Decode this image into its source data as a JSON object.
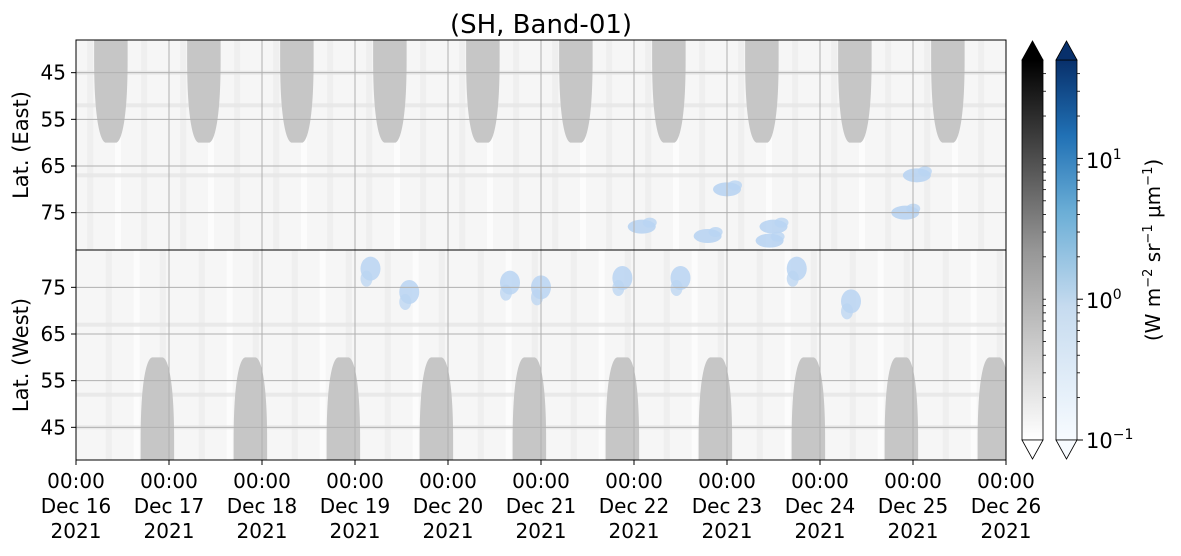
{
  "chart_data": {
    "type": "heatmap",
    "title": "(SH, Band-01)",
    "panels": [
      {
        "name": "east",
        "ylabel": "Lat. (East)",
        "yticks": [
          "45",
          "55",
          "65",
          "75"
        ],
        "lat_range": [
          38,
          83
        ],
        "orientation": "lat increases downward"
      },
      {
        "name": "west",
        "ylabel": "Lat. (West)",
        "yticks": [
          "75",
          "65",
          "55",
          "45"
        ],
        "lat_range": [
          83,
          38
        ],
        "orientation": "lat decreases downward"
      }
    ],
    "x_ticks": [
      {
        "time": "00:00",
        "date": "Dec 16",
        "year": "2021"
      },
      {
        "time": "00:00",
        "date": "Dec 17",
        "year": "2021"
      },
      {
        "time": "00:00",
        "date": "Dec 18",
        "year": "2021"
      },
      {
        "time": "00:00",
        "date": "Dec 19",
        "year": "2021"
      },
      {
        "time": "00:00",
        "date": "Dec 20",
        "year": "2021"
      },
      {
        "time": "00:00",
        "date": "Dec 21",
        "year": "2021"
      },
      {
        "time": "00:00",
        "date": "Dec 22",
        "year": "2021"
      },
      {
        "time": "00:00",
        "date": "Dec 23",
        "year": "2021"
      },
      {
        "time": "00:00",
        "date": "Dec 24",
        "year": "2021"
      },
      {
        "time": "00:00",
        "date": "Dec 25",
        "year": "2021"
      },
      {
        "time": "00:00",
        "date": "Dec 26",
        "year": "2021"
      }
    ],
    "x_range": [
      "2021-12-16T00:00",
      "2021-12-26T00:00"
    ],
    "grid": true,
    "dark_regions": {
      "east_center_times": [
        "2021-12-16T09:00",
        "2021-12-17T09:00",
        "2021-12-18T09:00",
        "2021-12-19T09:00",
        "2021-12-20T09:00",
        "2021-12-21T09:00",
        "2021-12-22T09:00",
        "2021-12-23T09:00",
        "2021-12-24T09:00",
        "2021-12-25T09:00"
      ],
      "west_center_times": [
        "2021-12-16T21:00",
        "2021-12-17T21:00",
        "2021-12-18T21:00",
        "2021-12-19T21:00",
        "2021-12-20T21:00",
        "2021-12-21T21:00",
        "2021-12-22T21:00",
        "2021-12-23T21:00",
        "2021-12-24T21:00",
        "2021-12-25T21:00"
      ],
      "edge_lat": 60
    },
    "blue_patches": {
      "east": [
        {
          "time": "2021-12-22T19:00",
          "lat": 80
        },
        {
          "time": "2021-12-22T02:00",
          "lat": 78
        },
        {
          "time": "2021-12-23T11:00",
          "lat": 81
        },
        {
          "time": "2021-12-23T12:00",
          "lat": 78
        },
        {
          "time": "2021-12-25T01:00",
          "lat": 67
        },
        {
          "time": "2021-12-24T22:00",
          "lat": 75
        },
        {
          "time": "2021-12-23T00:00",
          "lat": 70
        }
      ],
      "west": [
        {
          "time": "2021-12-21T00:00",
          "lat": 75
        },
        {
          "time": "2021-12-21T21:00",
          "lat": 77
        },
        {
          "time": "2021-12-22T12:00",
          "lat": 77
        },
        {
          "time": "2021-12-23T18:00",
          "lat": 79
        },
        {
          "time": "2021-12-24T08:00",
          "lat": 72
        },
        {
          "time": "2021-12-19T04:00",
          "lat": 79
        },
        {
          "time": "2021-12-19T14:00",
          "lat": 74
        },
        {
          "time": "2021-12-20T16:00",
          "lat": 76
        }
      ]
    },
    "colorbars": [
      {
        "cmap": "Greys",
        "extend": "both"
      },
      {
        "cmap": "Blues",
        "extend": "both",
        "scale": "log",
        "range": [
          0.1,
          50
        ],
        "ticks": [
          0.1,
          1,
          10
        ]
      }
    ],
    "colorbar_tick_labels": [
      {
        "base": "10",
        "exp": "1"
      },
      {
        "base": "10",
        "exp": "0"
      },
      {
        "base": "10",
        "exp": "−1"
      }
    ],
    "colorbar_label": {
      "open": "(W m",
      "e1": "−2",
      "mid1": " sr",
      "e2": "−1",
      "mu": " μ",
      "m": "m",
      "e3": "−1",
      "close": ")"
    },
    "colors": {
      "background": "#f6f6f6",
      "dark_region": "#c6c6c6",
      "blue": "#b9d4f2",
      "grid": "#b0b0b0"
    }
  }
}
